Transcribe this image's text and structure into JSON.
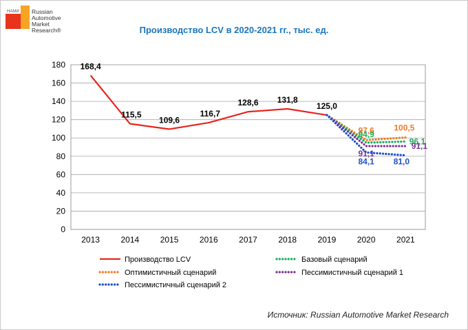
{
  "logo": {
    "nami": "НАМИ",
    "brand": "Russian\nAutomotive\nMarket\nResearch®"
  },
  "chart_data": {
    "type": "line",
    "title": "Производство LCV в 2020-2021 гг., тыс. ед.",
    "categories": [
      "2013",
      "2014",
      "2015",
      "2016",
      "2017",
      "2018",
      "2019",
      "2020",
      "2021"
    ],
    "ylim": [
      0,
      180
    ],
    "yticks": [
      0,
      20,
      40,
      60,
      80,
      100,
      120,
      140,
      160,
      180
    ],
    "grid": true,
    "legend_position": "bottom",
    "series": [
      {
        "name": "Производство LCV",
        "style": "solid",
        "color": "#e8251d",
        "x": [
          "2013",
          "2014",
          "2015",
          "2016",
          "2017",
          "2018",
          "2019"
        ],
        "values": [
          168.4,
          115.5,
          109.6,
          116.7,
          128.6,
          131.8,
          125.0
        ],
        "labels": [
          "168,4",
          "115,5",
          "109,6",
          "116,7",
          "128,6",
          "131,8",
          "125,0"
        ]
      },
      {
        "name": "Оптимистичный сценарий",
        "style": "dotted",
        "color": "#f07a26",
        "x": [
          "2019",
          "2020",
          "2021"
        ],
        "values": [
          125.0,
          97.6,
          100.5
        ],
        "labels": [
          "",
          "97,6",
          "100,5"
        ]
      },
      {
        "name": "Базовый сценарий",
        "style": "dotted",
        "color": "#18b05a",
        "x": [
          "2019",
          "2020",
          "2021"
        ],
        "values": [
          125.0,
          94.9,
          96.1
        ],
        "labels": [
          "",
          "94,9",
          "96,1"
        ]
      },
      {
        "name": "Пессимистичный сценарий 1",
        "style": "dotted",
        "color": "#7b3194",
        "x": [
          "2019",
          "2020",
          "2021"
        ],
        "values": [
          125.0,
          91.1,
          91.1
        ],
        "labels": [
          "",
          "91,1",
          "91,1"
        ]
      },
      {
        "name": "Пессимистичный сценарий 2",
        "style": "dotted",
        "color": "#1f4fcc",
        "x": [
          "2019",
          "2020",
          "2021"
        ],
        "values": [
          125.0,
          84.1,
          81.0
        ],
        "labels": [
          "",
          "84,1",
          "81,0"
        ]
      }
    ]
  },
  "source": "Источник: Russian Automotive Market Research"
}
